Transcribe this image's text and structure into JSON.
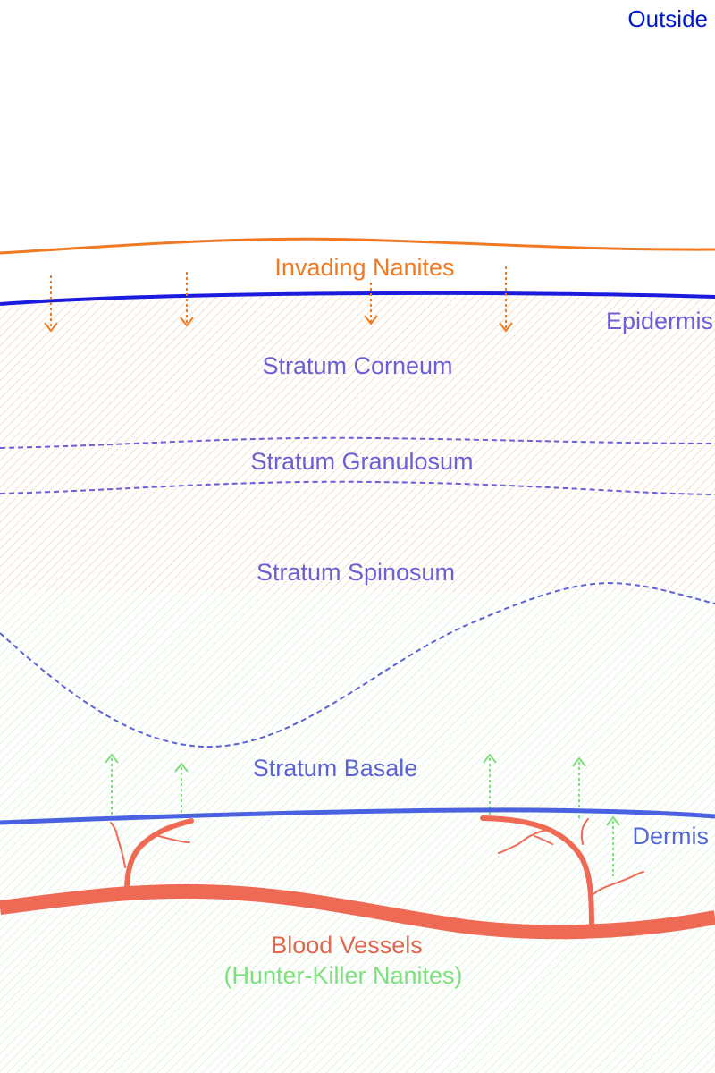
{
  "labels": {
    "outside": "Outside",
    "invading_nanites": "Invading Nanites",
    "epidermis": "Epidermis",
    "stratum_corneum": "Stratum Corneum",
    "stratum_granulosum": "Stratum Granulosum",
    "stratum_spinosum": "Stratum Spinosum",
    "stratum_basale": "Stratum Basale",
    "dermis": "Dermis",
    "blood_vessels": "Blood Vessels",
    "hunter_killer_nanites": "(Hunter-Killer Nanites)"
  },
  "colors": {
    "outside": "#0018cc",
    "nanite_orange": "#f07a22",
    "epidermis_line": "#1b1bdd",
    "layer_text": "#6b5ed6",
    "layer_dash": "#6b5ed6",
    "basale_line": "#4a62e0",
    "dermis_text": "#5566d8",
    "vessel": "#ee6a55",
    "vessel_text": "#e0674f",
    "hunter_green": "#7de07d",
    "epidermis_hatch": "#f3c9a8",
    "dermis_hatch": "#cfeec8"
  }
}
